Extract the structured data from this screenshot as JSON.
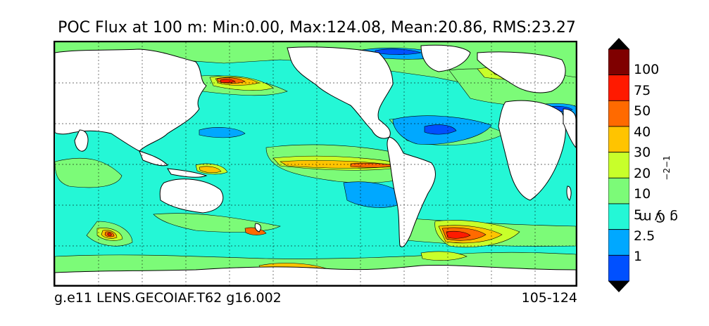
{
  "map": {
    "title": "POC Flux at 100 m: Min:0.00, Max:124.08, Mean:20.86, RMS:23.27",
    "footer_left": "g.e11 LENS.GECOIAF.T62 g16.002",
    "footer_right": "105-124",
    "colors": {
      "land": "#ffffff",
      "background_ocean": "#24f7d6",
      "ocean_low": "#00a8ff",
      "ocean_lower": "#0050ff",
      "green": "#7cfb78",
      "yellow_green": "#c8ff2a",
      "yellow": "#ffc400",
      "orange": "#ff6a00",
      "red": "#ff1a00",
      "darkred": "#7f0000"
    }
  },
  "colorbar": {
    "label_parts": [
      "g C m",
      "−2",
      " y",
      "−1"
    ],
    "label": "g C m−2 y−1",
    "levels": [
      "100",
      "75",
      "50",
      "40",
      "30",
      "20",
      "10",
      "5",
      "2.5",
      "1"
    ],
    "colors": [
      "#7f0000",
      "#ff1a00",
      "#ff6a00",
      "#ffc400",
      "#c8ff2a",
      "#7cfb78",
      "#24f7d6",
      "#00a8ff",
      "#0050ff",
      "#0000ff",
      "#00007f"
    ],
    "extend": "both"
  }
}
